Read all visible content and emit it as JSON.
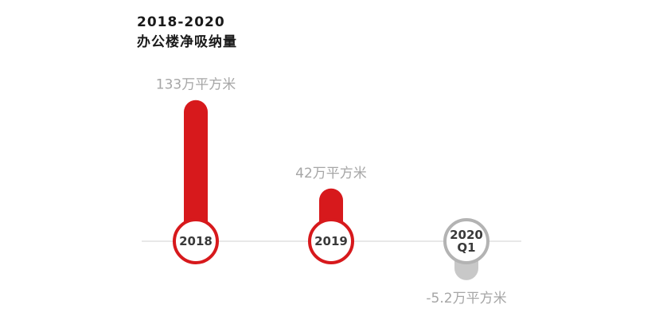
{
  "chart_data": {
    "type": "bar",
    "title_line1": "2018-2020",
    "title_line2": "办公楼净吸纳量",
    "unit": "万平方米",
    "categories": [
      {
        "label_lines": [
          "2018"
        ],
        "value": 133,
        "value_label": "133万平方米",
        "color": "#d7191c",
        "circle_color": "#d7191c"
      },
      {
        "label_lines": [
          "2019"
        ],
        "value": 42,
        "value_label": "42万平方米",
        "color": "#d7191c",
        "circle_color": "#d7191c"
      },
      {
        "label_lines": [
          "2020",
          "Q1"
        ],
        "value": -5.2,
        "value_label": "-5.2万平方米",
        "color": "#c8c8c8",
        "circle_color": "#b3b3b3"
      }
    ],
    "baseline_color": "#d9d9d9",
    "ylim": [
      -10,
      140
    ]
  }
}
